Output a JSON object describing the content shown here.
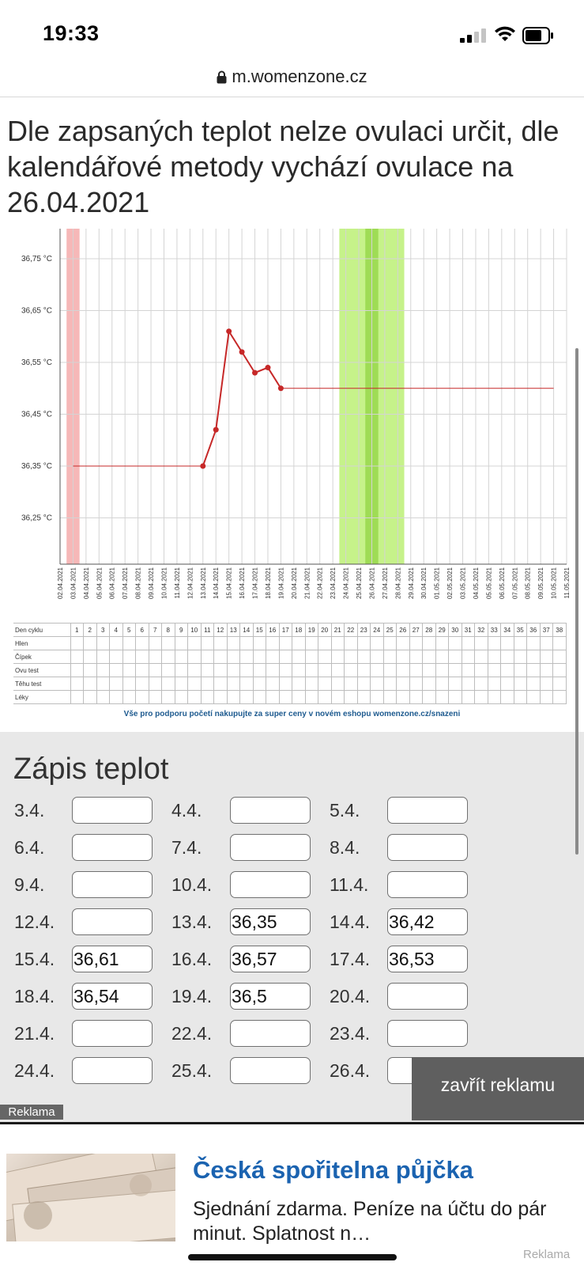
{
  "status_bar": {
    "time": "19:33"
  },
  "browser": {
    "url": "m.womenzone.cz"
  },
  "headline": "Dle zapsaných teplot nelze ovulaci určit, dle kalendářové metody vychází ovulace na 26.04.2021",
  "chart_data": {
    "type": "line",
    "y_ticks": [
      "36,75 °C",
      "36,65 °C",
      "36,55 °C",
      "36,45 °C",
      "36,35 °C",
      "36,25 °C"
    ],
    "y_tick_values": [
      36.75,
      36.65,
      36.55,
      36.45,
      36.35,
      36.25
    ],
    "ylim": [
      36.15,
      36.8
    ],
    "x_labels": [
      "02.04.2021",
      "03.04.2021",
      "04.04.2021",
      "05.04.2021",
      "06.04.2021",
      "07.04.2021",
      "08.04.2021",
      "09.04.2021",
      "10.04.2021",
      "11.04.2021",
      "12.04.2021",
      "13.04.2021",
      "14.04.2021",
      "15.04.2021",
      "16.04.2021",
      "17.04.2021",
      "18.04.2021",
      "19.04.2021",
      "20.04.2021",
      "21.04.2021",
      "22.04.2021",
      "23.04.2021",
      "24.04.2021",
      "25.04.2021",
      "26.04.2021",
      "27.04.2021",
      "28.04.2021",
      "29.04.2021",
      "30.04.2021",
      "01.05.2021",
      "02.05.2021",
      "03.05.2021",
      "04.05.2021",
      "05.05.2021",
      "06.05.2021",
      "07.05.2021",
      "08.05.2021",
      "09.05.2021",
      "10.05.2021",
      "11.05.2021"
    ],
    "measured": [
      {
        "date": "13.04.2021",
        "value": 36.35
      },
      {
        "date": "14.04.2021",
        "value": 36.42
      },
      {
        "date": "15.04.2021",
        "value": 36.61
      },
      {
        "date": "16.04.2021",
        "value": 36.57
      },
      {
        "date": "17.04.2021",
        "value": 36.53
      },
      {
        "date": "18.04.2021",
        "value": 36.54
      },
      {
        "date": "19.04.2021",
        "value": 36.5
      }
    ],
    "baseline_before": {
      "from": "03.04.2021",
      "to": "13.04.2021",
      "value": 36.35
    },
    "baseline_after": {
      "from": "19.04.2021",
      "to": "10.05.2021",
      "value": 36.5
    },
    "period_band": {
      "from": "03.04.2021",
      "to": "03.04.2021",
      "color": "#f6b8b8"
    },
    "fertile_band": {
      "from": "24.04.2021",
      "to": "28.04.2021",
      "color": "#c6f28a"
    },
    "ovulation_band": {
      "from": "26.04.2021",
      "to": "26.04.2021",
      "color": "#9fdc55"
    },
    "line_color": "#c62828",
    "grid": true
  },
  "cycle_table": {
    "header_label": "Den cyklu",
    "days": [
      "1",
      "2",
      "3",
      "4",
      "5",
      "6",
      "7",
      "8",
      "9",
      "10",
      "11",
      "12",
      "13",
      "14",
      "15",
      "16",
      "17",
      "18",
      "19",
      "20",
      "21",
      "22",
      "23",
      "24",
      "25",
      "26",
      "27",
      "28",
      "29",
      "30",
      "31",
      "32",
      "33",
      "34",
      "35",
      "36",
      "37",
      "38"
    ],
    "rows": [
      "Hlen",
      "Čípek",
      "Ovu test",
      "Těhu test",
      "Léky"
    ]
  },
  "promo_text": "Vše pro podporu početí nakupujte za super ceny v novém eshopu womenzone.cz/snazeni",
  "temp_section": {
    "title": "Zápis teplot",
    "entries": [
      {
        "label": "3.4.",
        "value": ""
      },
      {
        "label": "4.4.",
        "value": ""
      },
      {
        "label": "5.4.",
        "value": ""
      },
      {
        "label": "6.4.",
        "value": ""
      },
      {
        "label": "7.4.",
        "value": ""
      },
      {
        "label": "8.4.",
        "value": ""
      },
      {
        "label": "9.4.",
        "value": ""
      },
      {
        "label": "10.4.",
        "value": ""
      },
      {
        "label": "11.4.",
        "value": ""
      },
      {
        "label": "12.4.",
        "value": ""
      },
      {
        "label": "13.4.",
        "value": "36,35"
      },
      {
        "label": "14.4.",
        "value": "36,42"
      },
      {
        "label": "15.4.",
        "value": "36,61"
      },
      {
        "label": "16.4.",
        "value": "36,57"
      },
      {
        "label": "17.4.",
        "value": "36,53"
      },
      {
        "label": "18.4.",
        "value": "36,54"
      },
      {
        "label": "19.4.",
        "value": "36,5"
      },
      {
        "label": "20.4.",
        "value": ""
      },
      {
        "label": "21.4.",
        "value": ""
      },
      {
        "label": "22.4.",
        "value": ""
      },
      {
        "label": "23.4.",
        "value": ""
      },
      {
        "label": "24.4.",
        "value": ""
      },
      {
        "label": "25.4.",
        "value": ""
      },
      {
        "label": "26.4.",
        "value": ""
      }
    ]
  },
  "ad": {
    "close_label": "zavřít reklamu",
    "tag": "Reklama",
    "title": "Česká spořitelna půjčka",
    "text": "Sjednání zdarma. Peníze na účtu do pár minut. Splatnost n…",
    "footer_tag": "Reklama",
    "image_alt": "banknotes-image"
  }
}
